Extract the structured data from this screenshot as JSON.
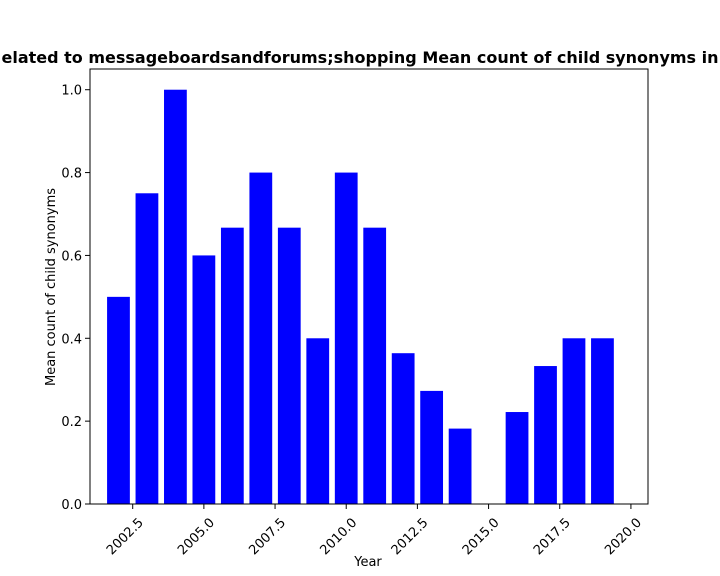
{
  "chart_data": {
    "type": "bar",
    "title": "elated to messageboardsandforums;shopping Mean count of child synonyms in",
    "xlabel": "Year",
    "ylabel": "Mean count of child synonyms",
    "x": [
      2002,
      2003,
      2004,
      2005,
      2006,
      2007,
      2008,
      2009,
      2010,
      2011,
      2012,
      2013,
      2014,
      2016,
      2017,
      2018,
      2019
    ],
    "values": [
      0.5,
      0.75,
      1.0,
      0.6,
      0.667,
      0.8,
      0.667,
      0.4,
      0.8,
      0.667,
      0.364,
      0.273,
      0.182,
      0.222,
      0.333,
      0.4,
      0.4
    ],
    "xlim": [
      2001.0,
      2020.6
    ],
    "ylim": [
      0,
      1.05
    ],
    "x_ticks": [
      "2002.5",
      "2005.0",
      "2007.5",
      "2010.0",
      "2012.5",
      "2015.0",
      "2017.5",
      "2020.0"
    ],
    "y_ticks": [
      "0.0",
      "0.2",
      "0.4",
      "0.6",
      "0.8",
      "1.0"
    ],
    "bar_color": "#0000ff",
    "grid": false,
    "legend": "none"
  }
}
